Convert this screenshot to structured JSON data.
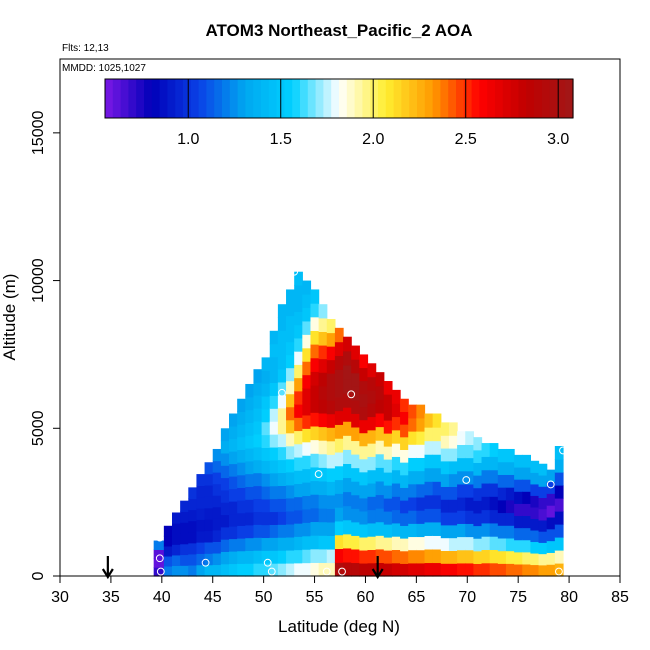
{
  "chart_data": {
    "type": "heatmap",
    "title": "ATOM3 Northeast_Pacific_2 AOA",
    "info_lines": [
      "Flts: 12,13",
      "MMDD: 1025,1027"
    ],
    "xlabel": "Latitude (deg N)",
    "ylabel": "Altitude (m)",
    "xlim": [
      30,
      85
    ],
    "ylim": [
      0,
      17500
    ],
    "x_ticks": [
      30,
      35,
      40,
      45,
      50,
      55,
      60,
      65,
      70,
      75,
      80,
      85
    ],
    "y_ticks": [
      0,
      5000,
      10000,
      15000
    ],
    "colorbar": {
      "range": [
        0.55,
        3.08
      ],
      "ticks": [
        1.0,
        1.5,
        2.0,
        2.5,
        3.0
      ],
      "tick_labels": [
        "1.0",
        "1.5",
        "2.0",
        "2.5",
        "3.0"
      ],
      "colors": [
        "#7b18e6",
        "#0000b8",
        "#0a40e6",
        "#00a8f0",
        "#00d0ff",
        "#ffffff",
        "#ffee30",
        "#ff9a00",
        "#ff0000",
        "#c00000",
        "#a01818"
      ]
    },
    "arrows_at_latitude": [
      34.7,
      61.2
    ],
    "profile_columns": [
      {
        "x0": 39.2,
        "x1": 40.2,
        "top": 1200,
        "v": [
          0.7,
          0.6,
          0.62,
          1.2
        ]
      },
      {
        "x0": 40.2,
        "x1": 41.0,
        "top": 1700,
        "v": [
          1.2,
          1.1,
          0.9,
          0.8,
          0.8
        ]
      },
      {
        "x0": 41.0,
        "x1": 41.8,
        "top": 2150,
        "v": [
          1.25,
          1.15,
          0.95,
          0.85,
          0.85,
          0.9
        ]
      },
      {
        "x0": 41.8,
        "x1": 42.6,
        "top": 2550,
        "v": [
          1.25,
          1.1,
          1.0,
          0.85,
          0.85,
          0.9,
          0.95
        ]
      },
      {
        "x0": 42.6,
        "x1": 43.4,
        "top": 3000,
        "v": [
          1.2,
          1.1,
          1.0,
          0.85,
          0.85,
          0.9,
          0.95,
          1.0
        ]
      },
      {
        "x0": 43.4,
        "x1": 44.2,
        "top": 3450,
        "v": [
          1.3,
          1.15,
          1.05,
          0.9,
          0.88,
          0.92,
          0.95,
          0.95,
          1.0
        ]
      },
      {
        "x0": 44.2,
        "x1": 45.0,
        "top": 3850,
        "v": [
          1.4,
          1.2,
          1.1,
          0.9,
          0.88,
          0.9,
          0.95,
          0.95,
          1.0,
          1.1
        ]
      },
      {
        "x0": 45.0,
        "x1": 45.8,
        "top": 4300,
        "v": [
          1.4,
          1.25,
          1.1,
          0.95,
          0.9,
          0.9,
          0.95,
          1.0,
          1.05,
          1.15,
          1.25
        ]
      },
      {
        "x0": 45.8,
        "x1": 46.6,
        "top": 5000,
        "v": [
          1.45,
          1.3,
          1.15,
          1.0,
          0.9,
          0.95,
          1.0,
          1.05,
          1.15,
          1.25,
          1.35,
          1.3
        ]
      },
      {
        "x0": 46.6,
        "x1": 47.4,
        "top": 5500,
        "v": [
          1.5,
          1.35,
          1.2,
          1.0,
          0.95,
          0.95,
          1.05,
          1.1,
          1.2,
          1.3,
          1.4,
          1.35,
          1.3
        ]
      },
      {
        "x0": 47.4,
        "x1": 48.2,
        "top": 6000,
        "v": [
          1.55,
          1.4,
          1.2,
          1.05,
          0.95,
          1.0,
          1.05,
          1.15,
          1.25,
          1.35,
          1.45,
          1.4,
          1.35,
          1.3
        ]
      },
      {
        "x0": 48.2,
        "x1": 49.0,
        "top": 6500,
        "v": [
          1.55,
          1.4,
          1.25,
          1.05,
          0.95,
          1.0,
          1.1,
          1.2,
          1.3,
          1.4,
          1.5,
          1.45,
          1.4,
          1.35,
          1.3
        ]
      },
      {
        "x0": 49.0,
        "x1": 49.8,
        "top": 7000,
        "v": [
          1.6,
          1.45,
          1.25,
          1.1,
          1.0,
          1.05,
          1.1,
          1.2,
          1.35,
          1.45,
          1.55,
          1.5,
          1.45,
          1.4,
          1.35,
          1.3
        ]
      },
      {
        "x0": 49.8,
        "x1": 50.6,
        "top": 7400,
        "v": [
          1.6,
          1.5,
          1.3,
          1.1,
          1.0,
          1.05,
          1.15,
          1.25,
          1.4,
          1.5,
          1.6,
          1.65,
          1.55,
          1.5,
          1.4,
          1.35,
          1.4
        ]
      },
      {
        "x0": 50.6,
        "x1": 51.4,
        "top": 8300,
        "v": [
          1.65,
          1.5,
          1.3,
          1.15,
          1.0,
          1.1,
          1.2,
          1.3,
          1.45,
          1.55,
          1.7,
          1.8,
          1.75,
          1.6,
          1.5,
          1.4,
          1.4,
          1.45,
          1.4
        ]
      },
      {
        "x0": 51.4,
        "x1": 52.2,
        "top": 9200,
        "v": [
          1.7,
          1.55,
          1.35,
          1.2,
          1.05,
          1.1,
          1.2,
          1.35,
          1.5,
          1.6,
          1.75,
          1.95,
          1.95,
          1.8,
          1.65,
          1.5,
          1.45,
          1.45,
          1.45,
          1.4,
          1.4
        ]
      },
      {
        "x0": 52.2,
        "x1": 53.0,
        "top": 9700,
        "v": [
          1.75,
          1.6,
          1.35,
          1.2,
          1.1,
          1.15,
          1.25,
          1.4,
          1.55,
          1.7,
          1.9,
          2.2,
          2.4,
          2.2,
          1.9,
          1.7,
          1.55,
          1.5,
          1.45,
          1.45,
          1.4,
          1.4
        ]
      },
      {
        "x0": 53.0,
        "x1": 53.8,
        "top": 10300,
        "v": [
          1.8,
          1.6,
          1.4,
          1.25,
          1.1,
          1.15,
          1.3,
          1.45,
          1.6,
          1.75,
          2.0,
          2.4,
          2.6,
          2.5,
          2.3,
          2.0,
          1.8,
          1.6,
          1.5,
          1.45,
          1.4,
          1.4,
          1.45
        ]
      },
      {
        "x0": 53.8,
        "x1": 54.6,
        "top": 10000,
        "v": [
          1.8,
          1.65,
          1.45,
          1.25,
          1.15,
          1.2,
          1.3,
          1.45,
          1.6,
          1.8,
          2.1,
          2.5,
          2.7,
          2.7,
          2.6,
          2.4,
          2.1,
          1.85,
          1.65,
          1.5,
          1.45,
          1.4
        ]
      },
      {
        "x0": 54.6,
        "x1": 55.4,
        "top": 9700,
        "v": [
          1.85,
          1.7,
          1.45,
          1.3,
          1.15,
          1.2,
          1.35,
          1.5,
          1.65,
          1.85,
          2.15,
          2.55,
          2.8,
          2.8,
          2.75,
          2.6,
          2.4,
          2.1,
          1.85,
          1.6,
          1.5
        ]
      },
      {
        "x0": 55.4,
        "x1": 56.2,
        "top": 9200,
        "v": [
          1.9,
          1.7,
          1.5,
          1.3,
          1.2,
          1.25,
          1.35,
          1.5,
          1.7,
          1.9,
          2.2,
          2.6,
          2.85,
          2.9,
          2.85,
          2.7,
          2.5,
          2.2,
          1.95,
          1.7
        ]
      },
      {
        "x0": 56.2,
        "x1": 57.0,
        "top": 8700,
        "v": [
          1.9,
          1.75,
          1.5,
          1.3,
          1.2,
          1.25,
          1.4,
          1.55,
          1.75,
          1.95,
          2.25,
          2.65,
          2.9,
          2.95,
          2.95,
          2.8,
          2.6,
          2.3,
          2.0
        ]
      },
      {
        "x0": 57.0,
        "x1": 57.8,
        "top": 8400,
        "v": [
          2.95,
          2.6,
          2.1,
          1.55,
          1.3,
          1.25,
          1.35,
          1.55,
          1.75,
          2.0,
          2.3,
          2.7,
          2.95,
          3.0,
          3.0,
          2.9,
          2.7,
          2.4
        ]
      },
      {
        "x0": 57.8,
        "x1": 58.6,
        "top": 8100,
        "v": [
          2.9,
          2.55,
          2.05,
          1.5,
          1.25,
          1.2,
          1.3,
          1.5,
          1.7,
          1.95,
          2.3,
          2.7,
          2.95,
          3.05,
          3.05,
          2.95,
          2.75
        ]
      },
      {
        "x0": 58.6,
        "x1": 59.4,
        "top": 7800,
        "v": [
          2.9,
          2.55,
          2.05,
          1.5,
          1.25,
          1.2,
          1.3,
          1.5,
          1.7,
          1.95,
          2.3,
          2.7,
          2.95,
          3.05,
          3.05,
          2.9,
          2.7
        ]
      },
      {
        "x0": 59.4,
        "x1": 60.2,
        "top": 7500,
        "v": [
          2.85,
          2.5,
          2.0,
          1.5,
          1.25,
          1.2,
          1.3,
          1.5,
          1.7,
          1.95,
          2.25,
          2.65,
          2.95,
          3.0,
          2.95,
          2.8,
          2.6
        ]
      },
      {
        "x0": 60.2,
        "x1": 61.0,
        "top": 7200,
        "v": [
          2.85,
          2.5,
          2.0,
          1.45,
          1.2,
          1.15,
          1.3,
          1.45,
          1.7,
          1.95,
          2.25,
          2.65,
          2.9,
          2.95,
          2.9,
          2.7
        ]
      },
      {
        "x0": 61.0,
        "x1": 61.8,
        "top": 6900,
        "v": [
          2.8,
          2.45,
          1.95,
          1.45,
          1.2,
          1.15,
          1.25,
          1.45,
          1.65,
          1.9,
          2.2,
          2.6,
          2.85,
          2.9,
          2.8
        ]
      },
      {
        "x0": 61.8,
        "x1": 62.6,
        "top": 6600,
        "v": [
          2.8,
          2.45,
          1.95,
          1.45,
          1.2,
          1.1,
          1.25,
          1.45,
          1.65,
          1.9,
          2.2,
          2.55,
          2.8,
          2.8,
          2.65
        ]
      },
      {
        "x0": 62.6,
        "x1": 63.4,
        "top": 6300,
        "v": [
          2.75,
          2.4,
          1.9,
          1.4,
          1.15,
          1.1,
          1.2,
          1.4,
          1.6,
          1.85,
          2.15,
          2.5,
          2.7,
          2.65
        ]
      },
      {
        "x0": 63.4,
        "x1": 64.2,
        "top": 6000,
        "v": [
          2.75,
          2.4,
          1.9,
          1.4,
          1.15,
          1.05,
          1.2,
          1.4,
          1.6,
          1.85,
          2.15,
          2.45,
          2.6,
          2.5
        ]
      },
      {
        "x0": 64.2,
        "x1": 65.0,
        "top": 5800,
        "v": [
          2.7,
          2.35,
          1.85,
          1.4,
          1.15,
          1.05,
          1.2,
          1.35,
          1.55,
          1.8,
          2.1,
          2.4,
          2.45
        ]
      },
      {
        "x0": 65.0,
        "x1": 65.8,
        "top": 5800,
        "v": [
          2.7,
          2.35,
          1.85,
          1.35,
          1.1,
          1.0,
          1.15,
          1.35,
          1.55,
          1.8,
          2.05,
          2.3,
          2.35
        ]
      },
      {
        "x0": 65.8,
        "x1": 66.6,
        "top": 5500,
        "v": [
          2.65,
          2.3,
          1.8,
          1.35,
          1.1,
          1.0,
          1.15,
          1.3,
          1.5,
          1.75,
          2.0,
          2.2
        ]
      },
      {
        "x0": 66.6,
        "x1": 67.4,
        "top": 5500,
        "v": [
          2.65,
          2.3,
          1.8,
          1.35,
          1.1,
          1.0,
          1.1,
          1.3,
          1.5,
          1.75,
          2.0,
          2.1
        ]
      },
      {
        "x0": 67.4,
        "x1": 68.2,
        "top": 5200,
        "v": [
          2.6,
          2.25,
          1.8,
          1.3,
          1.05,
          0.95,
          1.1,
          1.3,
          1.5,
          1.7,
          1.9,
          2.0
        ]
      },
      {
        "x0": 68.2,
        "x1": 69.0,
        "top": 5200,
        "v": [
          2.6,
          2.25,
          1.75,
          1.3,
          1.05,
          0.95,
          1.1,
          1.25,
          1.45,
          1.7,
          1.85,
          1.95
        ]
      },
      {
        "x0": 69.0,
        "x1": 69.8,
        "top": 4900,
        "v": [
          2.55,
          2.2,
          1.75,
          1.3,
          1.05,
          0.95,
          1.05,
          1.25,
          1.45,
          1.65,
          1.8
        ]
      },
      {
        "x0": 69.8,
        "x1": 70.6,
        "top": 4900,
        "v": [
          2.55,
          2.2,
          1.75,
          1.25,
          1.0,
          0.9,
          1.05,
          1.25,
          1.45,
          1.65,
          1.75
        ]
      },
      {
        "x0": 70.6,
        "x1": 71.4,
        "top": 4700,
        "v": [
          2.5,
          2.15,
          1.7,
          1.25,
          1.0,
          0.9,
          1.0,
          1.2,
          1.4,
          1.6,
          1.7
        ]
      },
      {
        "x0": 71.4,
        "x1": 72.2,
        "top": 4500,
        "v": [
          2.5,
          2.15,
          1.7,
          1.25,
          1.0,
          0.9,
          1.0,
          1.2,
          1.4,
          1.6
        ]
      },
      {
        "x0": 72.2,
        "x1": 73.0,
        "top": 4500,
        "v": [
          2.45,
          2.1,
          1.65,
          1.2,
          0.95,
          0.85,
          1.0,
          1.2,
          1.4,
          1.55
        ]
      },
      {
        "x0": 73.0,
        "x1": 73.8,
        "top": 4300,
        "v": [
          2.45,
          2.1,
          1.65,
          1.2,
          0.95,
          0.8,
          0.95,
          1.15,
          1.35,
          1.5
        ]
      },
      {
        "x0": 73.8,
        "x1": 74.6,
        "top": 4300,
        "v": [
          2.4,
          2.05,
          1.6,
          1.2,
          0.95,
          0.75,
          0.9,
          1.15,
          1.35,
          1.5
        ]
      },
      {
        "x0": 74.6,
        "x1": 75.4,
        "top": 4100,
        "v": [
          2.4,
          2.05,
          1.6,
          1.15,
          0.9,
          0.7,
          0.85,
          1.1,
          1.3,
          1.45
        ]
      },
      {
        "x0": 75.4,
        "x1": 76.2,
        "top": 4100,
        "v": [
          2.35,
          2.0,
          1.6,
          1.15,
          0.9,
          0.7,
          0.8,
          1.1,
          1.3,
          1.45
        ]
      },
      {
        "x0": 76.2,
        "x1": 77.0,
        "top": 3900,
        "v": [
          2.35,
          2.0,
          1.55,
          1.15,
          0.9,
          0.7,
          0.75,
          1.05,
          1.3,
          1.45
        ]
      },
      {
        "x0": 77.0,
        "x1": 77.8,
        "top": 3800,
        "v": [
          2.3,
          1.95,
          1.55,
          1.1,
          0.9,
          0.65,
          0.7,
          1.05,
          1.3,
          1.45
        ]
      },
      {
        "x0": 77.8,
        "x1": 78.6,
        "top": 3600,
        "v": [
          2.3,
          1.95,
          1.5,
          1.1,
          0.85,
          0.6,
          0.7,
          1.05,
          1.3
        ]
      },
      {
        "x0": 78.6,
        "x1": 79.4,
        "top": 4400,
        "v": [
          2.25,
          1.9,
          1.5,
          1.1,
          0.85,
          0.65,
          0.8,
          1.1,
          1.35,
          1.45
        ]
      }
    ],
    "observation_points": [
      {
        "lat": 39.8,
        "alt": 1300
      },
      {
        "lat": 39.8,
        "alt": 600
      },
      {
        "lat": 39.9,
        "alt": 150
      },
      {
        "lat": 44.3,
        "alt": 450
      },
      {
        "lat": 50.4,
        "alt": 450
      },
      {
        "lat": 50.8,
        "alt": 150
      },
      {
        "lat": 53.0,
        "alt": 10300
      },
      {
        "lat": 51.8,
        "alt": 6200
      },
      {
        "lat": 55.4,
        "alt": 3450
      },
      {
        "lat": 56.2,
        "alt": 150
      },
      {
        "lat": 57.7,
        "alt": 150
      },
      {
        "lat": 58.6,
        "alt": 6150
      },
      {
        "lat": 69.9,
        "alt": 3250
      },
      {
        "lat": 78.2,
        "alt": 3100
      },
      {
        "lat": 79.4,
        "alt": 4250
      },
      {
        "lat": 79.0,
        "alt": 150
      }
    ]
  }
}
